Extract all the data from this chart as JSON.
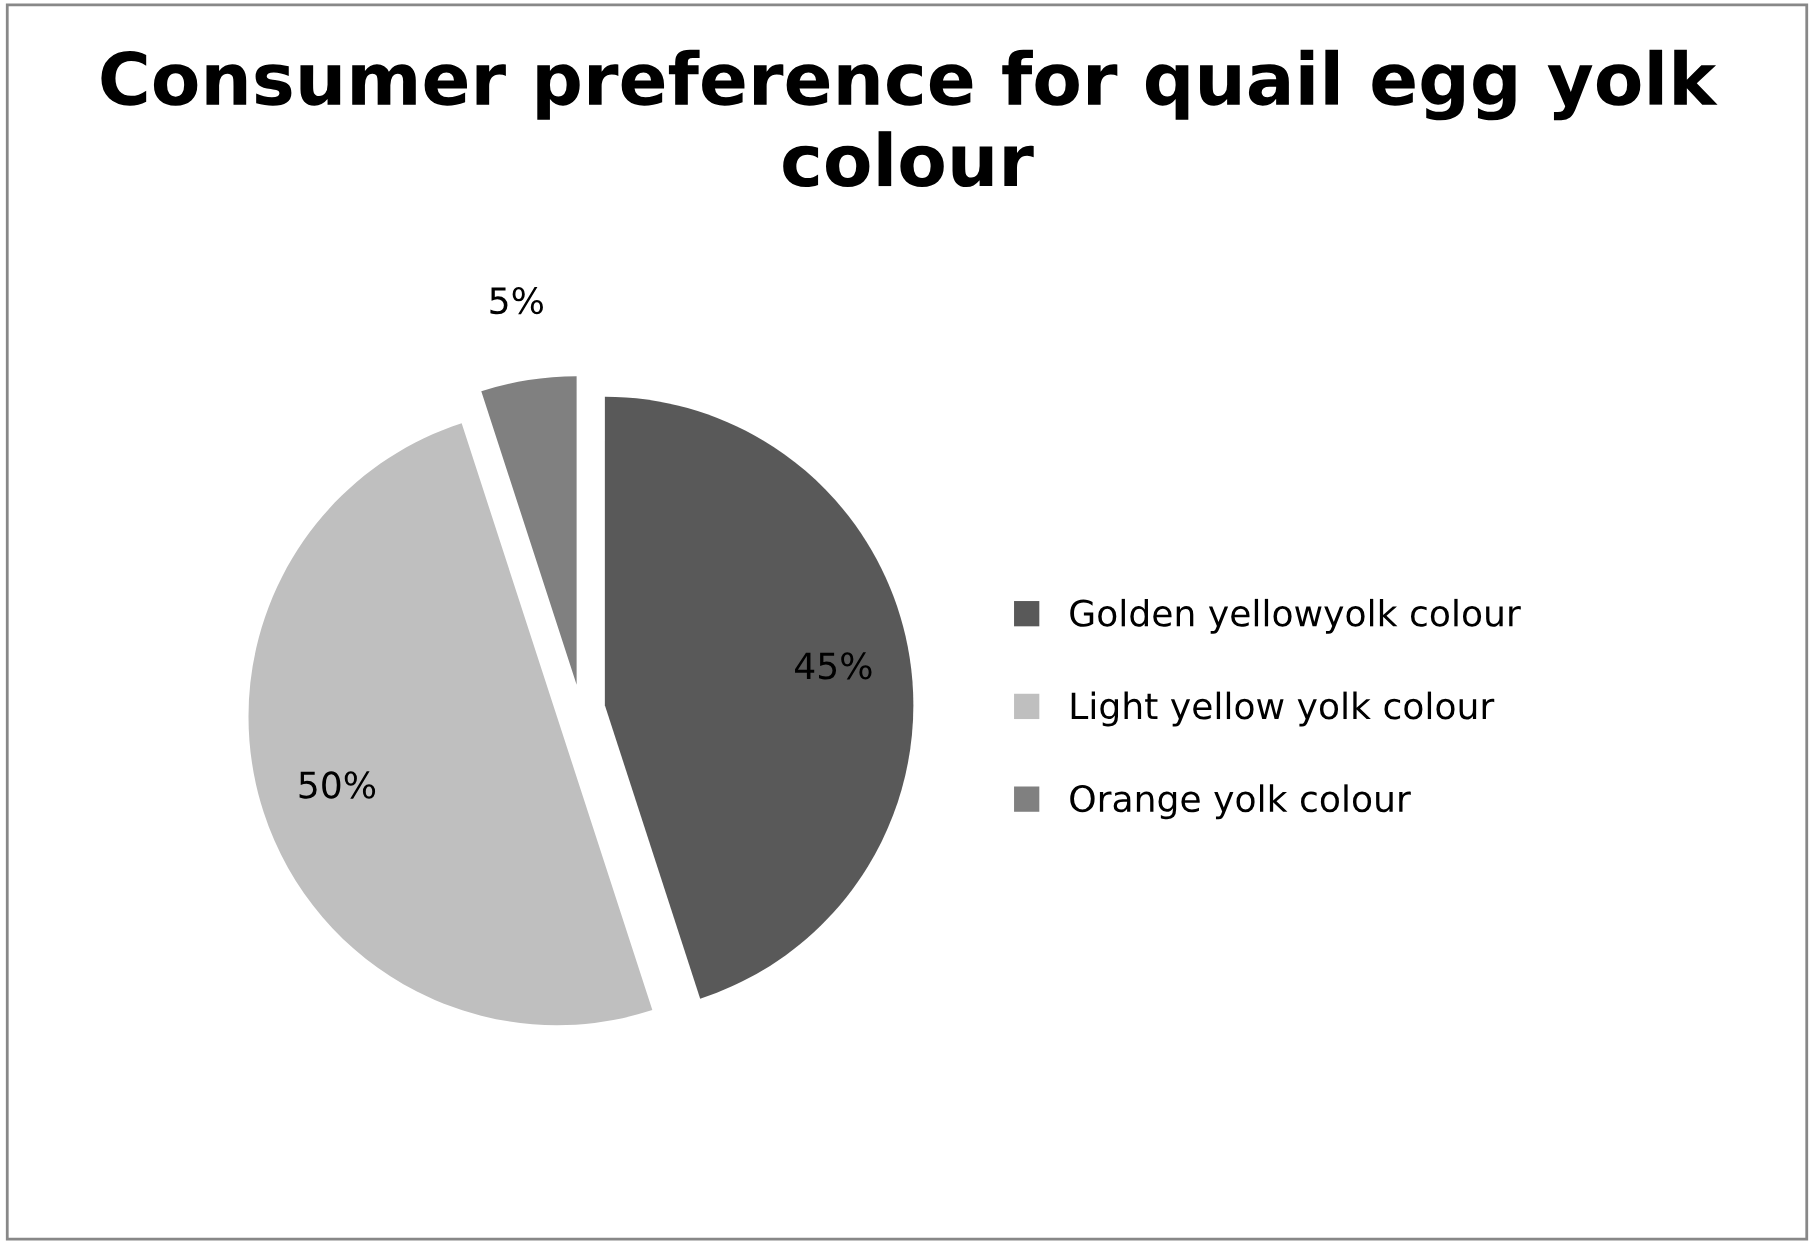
{
  "chart_data": {
    "type": "pie",
    "title": "Consumer preference for quail egg yolk colour",
    "categories": [
      "Golden yellowyolk colour",
      "Light yellow yolk colour",
      "Orange yolk colour"
    ],
    "values": [
      45,
      50,
      5
    ],
    "value_labels": [
      "45%",
      "50%",
      "5%"
    ],
    "colors": [
      "#595959",
      "#bfbfbf",
      "#808080"
    ],
    "legend": "right"
  }
}
